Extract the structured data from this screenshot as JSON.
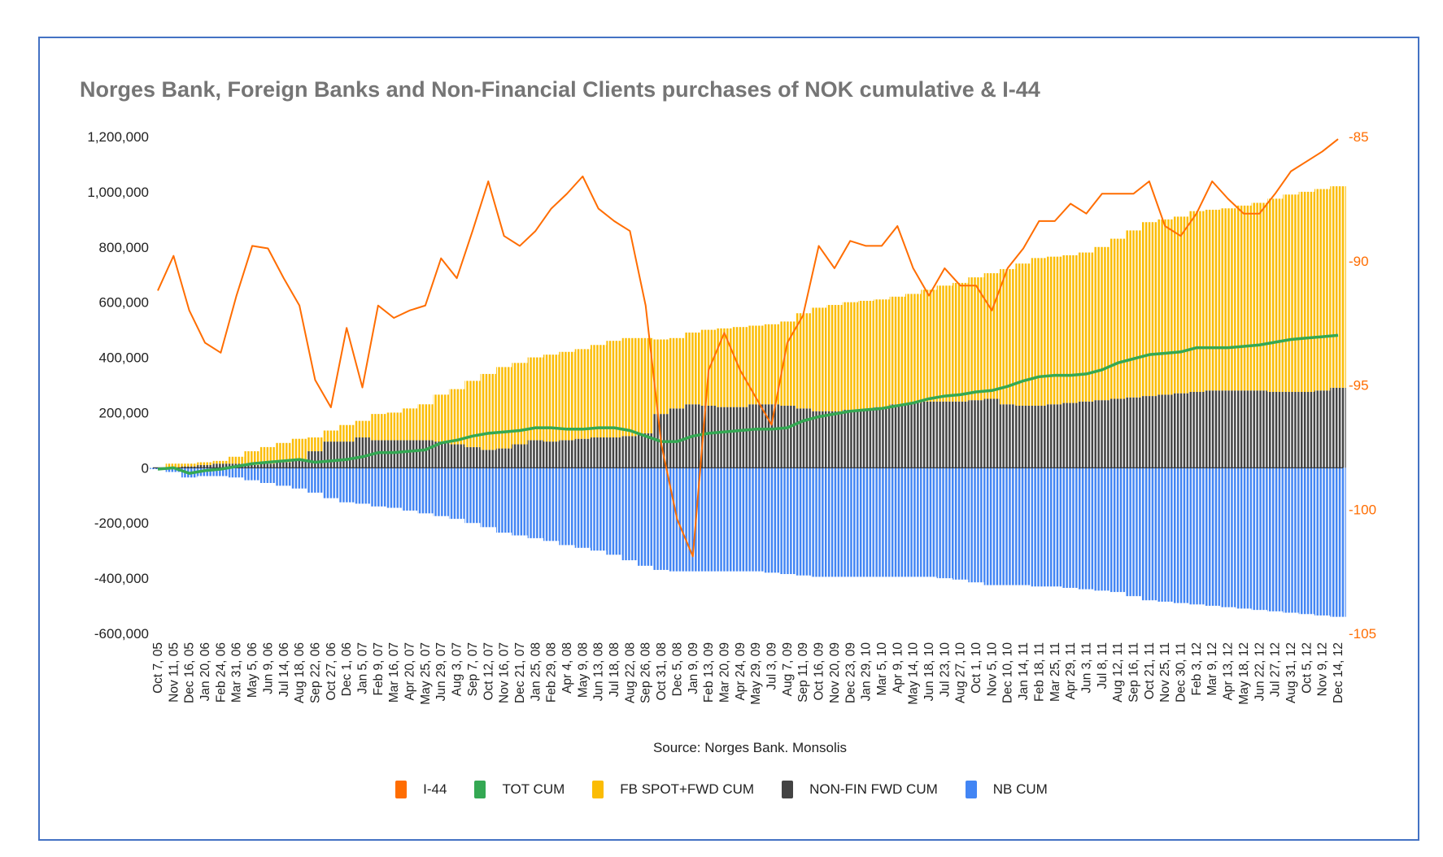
{
  "chart_data": {
    "type": "bar",
    "title": "Norges Bank, Foreign Banks and Non-Financial Clients purchases of NOK cumulative & I-44",
    "source": "Source: Norges Bank. Monsolis",
    "stacked": true,
    "legend_position": "bottom",
    "grid": false,
    "y_left": {
      "range": [
        -600000,
        1200000
      ],
      "ticks": [
        "1,200,000",
        "1,000,000",
        "800,000",
        "600,000",
        "400,000",
        "200,000",
        "0",
        "-200,000",
        "-400,000",
        "-600,000"
      ],
      "tick_values": [
        1200000,
        1000000,
        800000,
        600000,
        400000,
        200000,
        0,
        -200000,
        -400000,
        -600000
      ]
    },
    "y_right": {
      "range": [
        -105,
        -85
      ],
      "ticks": [
        "-85",
        "-90",
        "-95",
        "-100",
        "-105"
      ],
      "tick_values": [
        -85,
        -90,
        -95,
        -100,
        -105
      ],
      "color": "#FF6D01"
    },
    "categories": [
      "Oct 7, 05",
      "Nov 11, 05",
      "Dec 16, 05",
      "Jan 20, 06",
      "Feb 24, 06",
      "Mar 31, 06",
      "May 5, 06",
      "Jun 9, 06",
      "Jul 14, 06",
      "Aug 18, 06",
      "Sep 22, 06",
      "Oct 27, 06",
      "Dec 1, 06",
      "Jan 5, 07",
      "Feb 9, 07",
      "Mar 16, 07",
      "Apr 20, 07",
      "May 25, 07",
      "Jun 29, 07",
      "Aug 3, 07",
      "Sep 7, 07",
      "Oct 12, 07",
      "Nov 16, 07",
      "Dec 21, 07",
      "Jan 25, 08",
      "Feb 29, 08",
      "Apr 4, 08",
      "May 9, 08",
      "Jun 13, 08",
      "Jul 18, 08",
      "Aug 22, 08",
      "Sep 26, 08",
      "Oct 31, 08",
      "Dec 5, 08",
      "Jan 9, 09",
      "Feb 13, 09",
      "Mar 20, 09",
      "Apr 24, 09",
      "May 29, 09",
      "Jul 3, 09",
      "Aug 7, 09",
      "Sep 11, 09",
      "Oct 16, 09",
      "Nov 20, 09",
      "Dec 23, 09",
      "Jan 29, 10",
      "Mar 5, 10",
      "Apr 9, 10",
      "May 14, 10",
      "Jun 18, 10",
      "Jul 23, 10",
      "Aug 27, 10",
      "Oct 1, 10",
      "Nov 5, 10",
      "Dec 10, 10",
      "Jan 14, 11",
      "Feb 18, 11",
      "Mar 25, 11",
      "Apr 29, 11",
      "Jun 3, 11",
      "Jul 8, 11",
      "Aug 12, 11",
      "Sep 16, 11",
      "Oct 21, 11",
      "Nov 25, 11",
      "Dec 30, 11",
      "Feb 3, 12",
      "Mar 9, 12",
      "Apr 13, 12",
      "May 18, 12",
      "Jun 22, 12",
      "Jul 27, 12",
      "Aug 31, 12",
      "Oct 5, 12",
      "Nov 9, 12",
      "Dec 14, 12"
    ],
    "series": [
      {
        "name": "I-44",
        "type": "line",
        "axis": "right",
        "color": "#FF6D01",
        "values": [
          -91.2,
          -89.8,
          -92.0,
          -93.3,
          -93.7,
          -91.4,
          -89.4,
          -89.5,
          -90.7,
          -91.8,
          -94.8,
          -95.9,
          -92.7,
          -95.1,
          -91.8,
          -92.3,
          -92.0,
          -91.8,
          -89.9,
          -90.7,
          -88.8,
          -86.8,
          -89.0,
          -89.4,
          -88.8,
          -87.9,
          -87.3,
          -86.6,
          -87.9,
          -88.4,
          -88.8,
          -91.8,
          -97.4,
          -100.4,
          -101.9,
          -94.4,
          -92.9,
          -94.4,
          -95.5,
          -96.6,
          -93.3,
          -92.2,
          -89.4,
          -90.3,
          -89.2,
          -89.4,
          -89.4,
          -88.6,
          -90.3,
          -91.4,
          -90.3,
          -91.0,
          -91.0,
          -92.0,
          -90.3,
          -89.5,
          -88.4,
          -88.4,
          -87.7,
          -88.1,
          -87.3,
          -87.3,
          -87.3,
          -86.8,
          -88.6,
          -89.0,
          -88.1,
          -86.8,
          -87.5,
          -88.1,
          -88.1,
          -87.3,
          -86.4,
          -86.0,
          -85.6,
          -85.1
        ]
      },
      {
        "name": "TOT CUM",
        "type": "line",
        "axis": "left",
        "color": "#34A853",
        "values": [
          -5000,
          0,
          -20000,
          -10000,
          -5000,
          5000,
          15000,
          20000,
          25000,
          30000,
          20000,
          25000,
          30000,
          40000,
          55000,
          55000,
          60000,
          65000,
          90000,
          100000,
          115000,
          125000,
          130000,
          135000,
          145000,
          145000,
          140000,
          140000,
          145000,
          145000,
          135000,
          115000,
          95000,
          95000,
          115000,
          125000,
          130000,
          135000,
          140000,
          140000,
          145000,
          170000,
          185000,
          195000,
          205000,
          210000,
          215000,
          225000,
          235000,
          250000,
          260000,
          265000,
          275000,
          280000,
          295000,
          315000,
          330000,
          335000,
          335000,
          340000,
          355000,
          380000,
          395000,
          410000,
          415000,
          420000,
          435000,
          435000,
          435000,
          440000,
          445000,
          455000,
          465000,
          470000,
          475000,
          480000
        ]
      },
      {
        "name": "FB SPOT+FWD CUM",
        "type": "bar",
        "axis": "left",
        "color": "#FBBC04",
        "values": [
          0,
          15000,
          10000,
          10000,
          10000,
          25000,
          50000,
          60000,
          70000,
          80000,
          50000,
          40000,
          60000,
          60000,
          95000,
          100000,
          115000,
          130000,
          170000,
          200000,
          240000,
          275000,
          295000,
          295000,
          300000,
          315000,
          320000,
          325000,
          335000,
          350000,
          355000,
          345000,
          270000,
          255000,
          260000,
          275000,
          285000,
          290000,
          285000,
          290000,
          305000,
          345000,
          375000,
          385000,
          390000,
          395000,
          390000,
          390000,
          395000,
          405000,
          420000,
          430000,
          445000,
          455000,
          490000,
          515000,
          535000,
          535000,
          535000,
          540000,
          555000,
          580000,
          605000,
          630000,
          635000,
          640000,
          655000,
          655000,
          660000,
          670000,
          680000,
          700000,
          715000,
          725000,
          730000,
          730000
        ]
      },
      {
        "name": "NON-FIN FWD CUM",
        "type": "bar",
        "axis": "left",
        "color": "#434343",
        "values": [
          0,
          0,
          5000,
          10000,
          15000,
          15000,
          10000,
          15000,
          20000,
          25000,
          60000,
          95000,
          95000,
          110000,
          100000,
          100000,
          100000,
          100000,
          95000,
          85000,
          75000,
          65000,
          70000,
          85000,
          100000,
          95000,
          100000,
          105000,
          110000,
          110000,
          115000,
          125000,
          195000,
          215000,
          230000,
          225000,
          220000,
          220000,
          230000,
          230000,
          225000,
          215000,
          205000,
          205000,
          210000,
          210000,
          220000,
          230000,
          235000,
          240000,
          240000,
          240000,
          245000,
          250000,
          230000,
          225000,
          225000,
          230000,
          235000,
          240000,
          245000,
          250000,
          255000,
          260000,
          265000,
          270000,
          275000,
          280000,
          280000,
          280000,
          280000,
          275000,
          275000,
          275000,
          280000,
          290000
        ]
      },
      {
        "name": "NB CUM",
        "type": "bar",
        "axis": "left",
        "color": "#4285F4",
        "values": [
          -5000,
          -15000,
          -35000,
          -30000,
          -30000,
          -35000,
          -45000,
          -55000,
          -65000,
          -75000,
          -90000,
          -110000,
          -125000,
          -130000,
          -140000,
          -145000,
          -155000,
          -165000,
          -175000,
          -185000,
          -200000,
          -215000,
          -235000,
          -245000,
          -255000,
          -265000,
          -280000,
          -290000,
          -300000,
          -315000,
          -335000,
          -355000,
          -370000,
          -375000,
          -375000,
          -375000,
          -375000,
          -375000,
          -375000,
          -380000,
          -385000,
          -390000,
          -395000,
          -395000,
          -395000,
          -395000,
          -395000,
          -395000,
          -395000,
          -395000,
          -400000,
          -405000,
          -415000,
          -425000,
          -425000,
          -425000,
          -430000,
          -430000,
          -435000,
          -440000,
          -445000,
          -450000,
          -465000,
          -480000,
          -485000,
          -490000,
          -495000,
          -500000,
          -505000,
          -510000,
          -515000,
          -520000,
          -525000,
          -530000,
          -535000,
          -540000
        ]
      }
    ],
    "legend": [
      "I-44",
      "TOT CUM",
      "FB SPOT+FWD CUM",
      "NON-FIN FWD CUM",
      "NB CUM"
    ]
  }
}
